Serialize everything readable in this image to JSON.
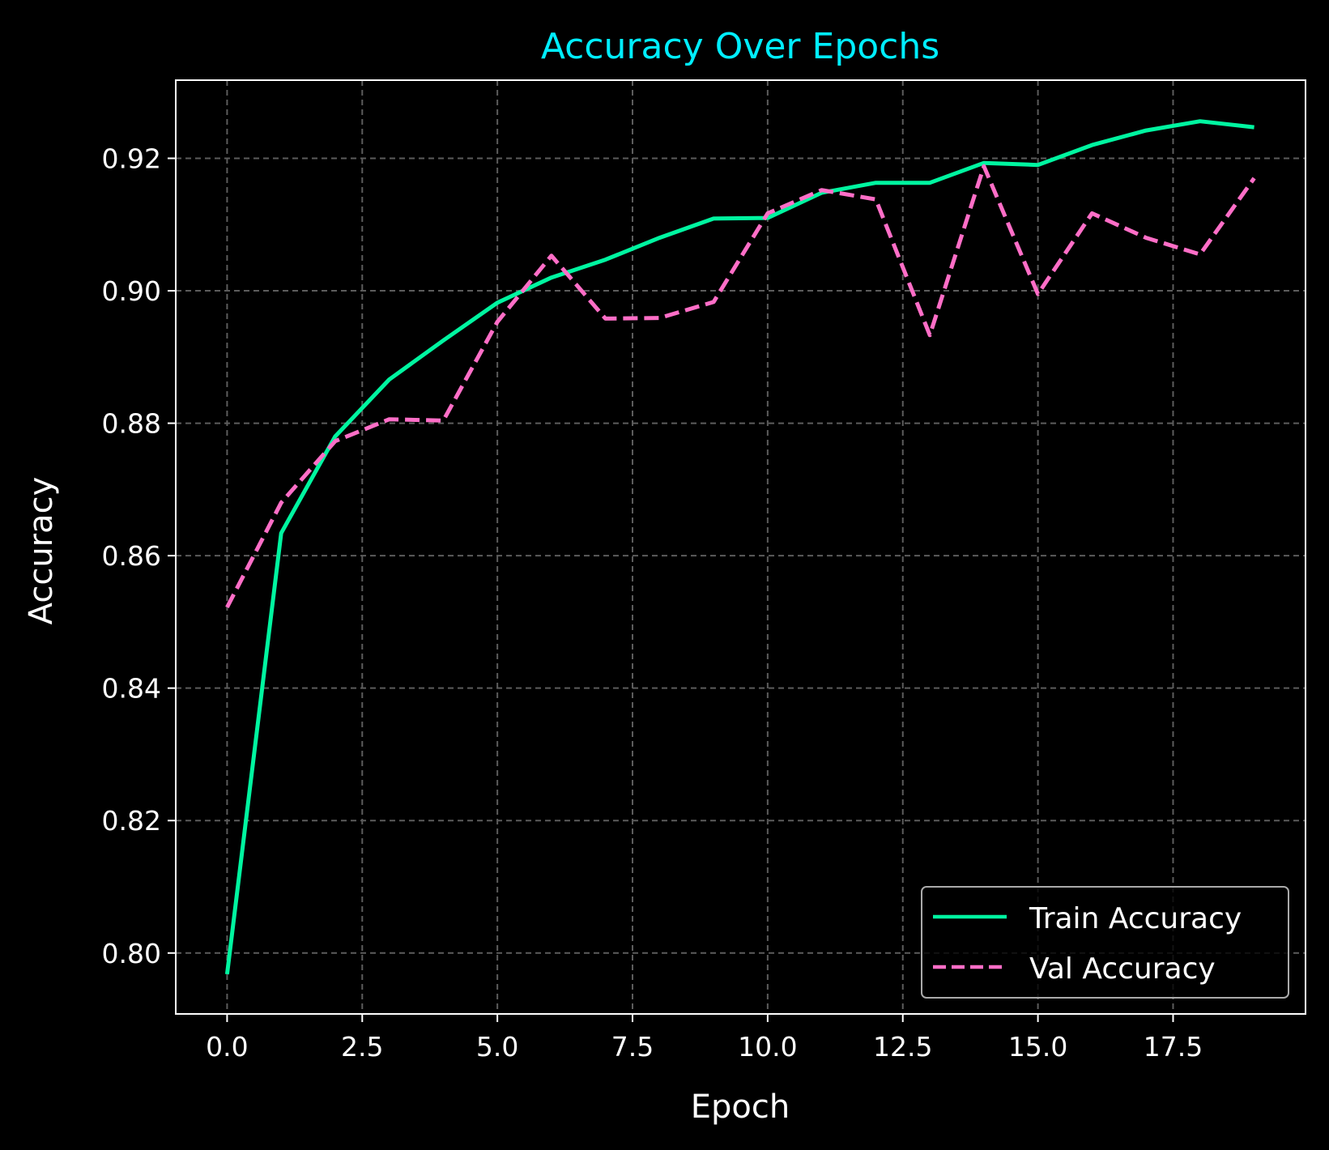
{
  "chart_data": {
    "type": "line",
    "title": "Accuracy Over Epochs",
    "xlabel": "Epoch",
    "ylabel": "Accuracy",
    "xlim": [
      -0.95,
      19.95
    ],
    "ylim": [
      0.7908,
      0.9318
    ],
    "x_ticks": [
      {
        "value": 0.0,
        "label": "0.0"
      },
      {
        "value": 2.5,
        "label": "2.5"
      },
      {
        "value": 5.0,
        "label": "5.0"
      },
      {
        "value": 7.5,
        "label": "7.5"
      },
      {
        "value": 10.0,
        "label": "10.0"
      },
      {
        "value": 12.5,
        "label": "12.5"
      },
      {
        "value": 15.0,
        "label": "15.0"
      },
      {
        "value": 17.5,
        "label": "17.5"
      }
    ],
    "y_ticks": [
      {
        "value": 0.8,
        "label": "0.80"
      },
      {
        "value": 0.82,
        "label": "0.82"
      },
      {
        "value": 0.84,
        "label": "0.84"
      },
      {
        "value": 0.86,
        "label": "0.86"
      },
      {
        "value": 0.88,
        "label": "0.88"
      },
      {
        "value": 0.9,
        "label": "0.90"
      },
      {
        "value": 0.92,
        "label": "0.92"
      }
    ],
    "grid": true,
    "legend_position": "lower-right",
    "x": [
      0,
      1,
      2,
      3,
      4,
      5,
      6,
      7,
      8,
      9,
      10,
      11,
      12,
      13,
      14,
      15,
      16,
      17,
      18,
      19
    ],
    "series": [
      {
        "name": "Train Accuracy",
        "color": "#00f5a0",
        "style": "solid",
        "values": [
          0.7968,
          0.8634,
          0.878,
          0.8866,
          0.8925,
          0.8982,
          0.902,
          0.9047,
          0.908,
          0.9109,
          0.911,
          0.9148,
          0.9163,
          0.9163,
          0.9193,
          0.919,
          0.922,
          0.9242,
          0.9256,
          0.9247
        ]
      },
      {
        "name": "Val Accuracy",
        "color": "#ff6ec7",
        "style": "dashed",
        "values": [
          0.8522,
          0.868,
          0.8773,
          0.8806,
          0.8804,
          0.8953,
          0.9053,
          0.8958,
          0.8959,
          0.8983,
          0.9117,
          0.9152,
          0.9138,
          0.8933,
          0.9188,
          0.8995,
          0.9117,
          0.908,
          0.9055,
          0.917
        ]
      }
    ],
    "colors": {
      "background": "#000000",
      "title": "#00eeff",
      "text": "#ffffff",
      "axes": "#ffffff",
      "grid": "#5c5c5c",
      "legend_border": "#aaaaaa"
    }
  }
}
